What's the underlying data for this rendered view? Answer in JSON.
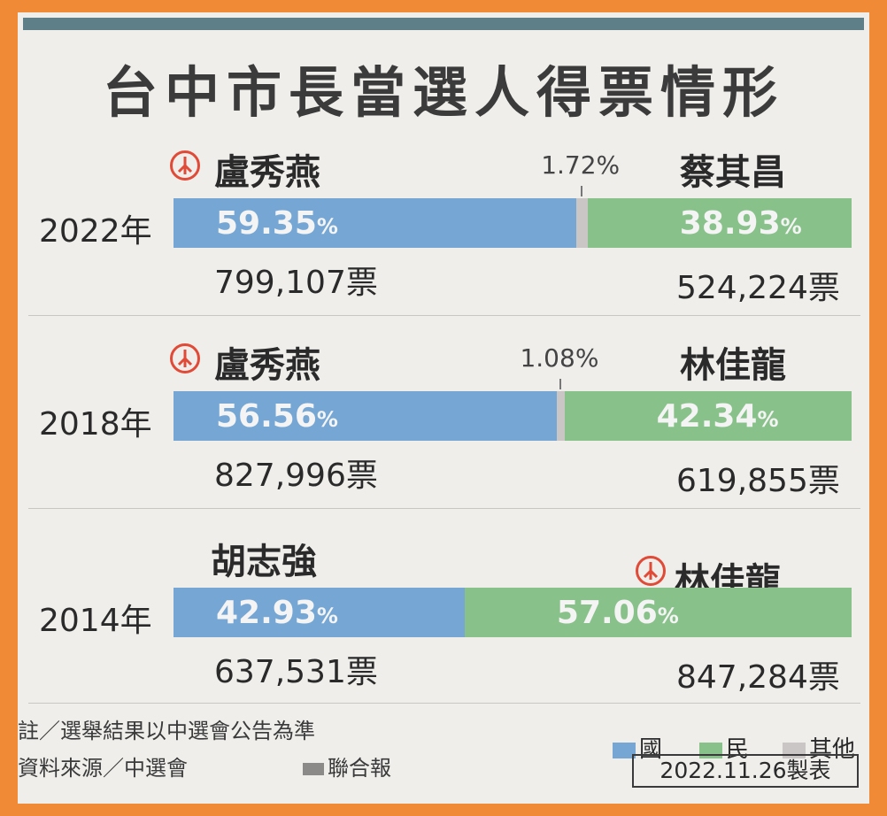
{
  "title": "台中市長當選人得票情形",
  "chart_data": {
    "type": "bar",
    "stacked": true,
    "orientation": "horizontal",
    "title": "台中市長當選人得票情形",
    "categories": [
      "2022年",
      "2018年",
      "2014年"
    ],
    "series": [
      {
        "name": "國",
        "values": [
          59.35,
          56.56,
          42.93
        ],
        "labels": [
          "59.35%",
          "56.56%",
          "42.93%"
        ],
        "color": "#76a7d4"
      },
      {
        "name": "其他",
        "values": [
          1.72,
          1.08,
          0.01
        ],
        "labels": [
          "1.72%",
          "1.08%",
          ""
        ],
        "color": "#cac6c5"
      },
      {
        "name": "民",
        "values": [
          38.93,
          42.34,
          57.06
        ],
        "labels": [
          "38.93%",
          "42.34%",
          "57.06%"
        ],
        "color": "#88c18a"
      }
    ],
    "xlim": [
      0,
      100
    ],
    "rows": [
      {
        "year": "2022年",
        "left_name": "盧秀燕",
        "right_name": "蔡其昌",
        "winner": "left",
        "left_votes": "799,107票",
        "right_votes": "524,224票",
        "left_pct": "59.35",
        "right_pct": "38.93",
        "other_pct": "1.72"
      },
      {
        "year": "2018年",
        "left_name": "盧秀燕",
        "right_name": "林佳龍",
        "winner": "left",
        "left_votes": "827,996票",
        "right_votes": "619,855票",
        "left_pct": "56.56",
        "right_pct": "42.34",
        "other_pct": "1.08"
      },
      {
        "year": "2014年",
        "left_name": "胡志強",
        "right_name": "林佳龍",
        "winner": "right",
        "left_votes": "637,531票",
        "right_votes": "847,284票",
        "left_pct": "42.93",
        "right_pct": "57.06",
        "other_pct": ""
      }
    ],
    "legend": [
      "國",
      "民",
      "其他"
    ],
    "legend_position": "bottom-right",
    "percent_sign": "%"
  },
  "notes": {
    "note": "註／選舉結果以中選會公告為準",
    "source": "資料來源／中選會",
    "publisher": "聯合報",
    "date": "2022.11.26製表"
  },
  "winner_icon": "vote-stamp-icon"
}
